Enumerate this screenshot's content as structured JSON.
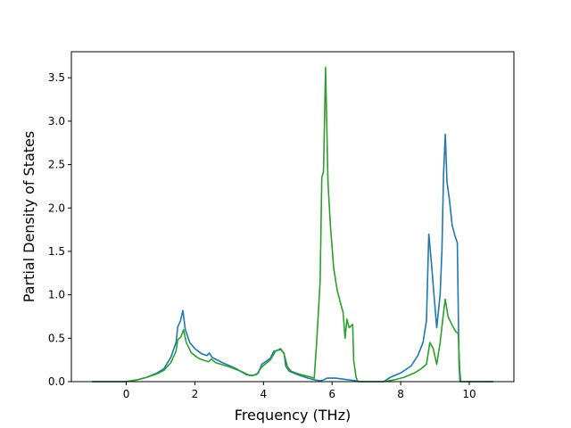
{
  "chart_data": {
    "type": "line",
    "title": "",
    "xlabel": "Frequency (THz)",
    "ylabel": "Partial Density of States",
    "xlim": [
      -1.6,
      11.3
    ],
    "ylim": [
      0,
      3.8
    ],
    "xticks": [
      0,
      2,
      4,
      6,
      8,
      10
    ],
    "xtick_labels": [
      "0",
      "2",
      "4",
      "6",
      "8",
      "10"
    ],
    "yticks": [
      0.0,
      0.5,
      1.0,
      1.5,
      2.0,
      2.5,
      3.0,
      3.5
    ],
    "ytick_labels": [
      "0.0",
      "0.5",
      "1.0",
      "1.5",
      "2.0",
      "2.5",
      "3.0",
      "3.5"
    ],
    "grid": false,
    "legend": "none",
    "series": [
      {
        "color": "#1f77b4",
        "points": [
          [
            -1.0,
            0.0
          ],
          [
            0.0,
            0.0
          ],
          [
            0.3,
            0.02
          ],
          [
            0.6,
            0.05
          ],
          [
            0.9,
            0.1
          ],
          [
            1.1,
            0.15
          ],
          [
            1.3,
            0.28
          ],
          [
            1.45,
            0.45
          ],
          [
            1.5,
            0.63
          ],
          [
            1.58,
            0.7
          ],
          [
            1.65,
            0.82
          ],
          [
            1.72,
            0.6
          ],
          [
            1.85,
            0.45
          ],
          [
            2.0,
            0.38
          ],
          [
            2.2,
            0.32
          ],
          [
            2.35,
            0.3
          ],
          [
            2.42,
            0.33
          ],
          [
            2.5,
            0.28
          ],
          [
            2.8,
            0.22
          ],
          [
            3.2,
            0.15
          ],
          [
            3.5,
            0.08
          ],
          [
            3.7,
            0.07
          ],
          [
            3.85,
            0.1
          ],
          [
            3.95,
            0.2
          ],
          [
            4.1,
            0.24
          ],
          [
            4.2,
            0.27
          ],
          [
            4.3,
            0.35
          ],
          [
            4.5,
            0.37
          ],
          [
            4.6,
            0.33
          ],
          [
            4.65,
            0.18
          ],
          [
            4.75,
            0.12
          ],
          [
            5.0,
            0.08
          ],
          [
            5.3,
            0.04
          ],
          [
            5.5,
            0.02
          ],
          [
            5.65,
            0.01
          ],
          [
            5.75,
            0.02
          ],
          [
            5.85,
            0.04
          ],
          [
            6.1,
            0.04
          ],
          [
            6.3,
            0.03
          ],
          [
            6.5,
            0.02
          ],
          [
            6.7,
            0.01
          ],
          [
            6.8,
            0.0
          ],
          [
            7.5,
            0.0
          ],
          [
            7.7,
            0.05
          ],
          [
            8.0,
            0.1
          ],
          [
            8.3,
            0.18
          ],
          [
            8.5,
            0.3
          ],
          [
            8.65,
            0.45
          ],
          [
            8.75,
            0.7
          ],
          [
            8.82,
            1.7
          ],
          [
            8.9,
            1.35
          ],
          [
            8.97,
            1.0
          ],
          [
            9.05,
            0.62
          ],
          [
            9.15,
            1.0
          ],
          [
            9.2,
            1.5
          ],
          [
            9.25,
            2.4
          ],
          [
            9.3,
            2.85
          ],
          [
            9.35,
            2.3
          ],
          [
            9.42,
            2.1
          ],
          [
            9.5,
            1.8
          ],
          [
            9.58,
            1.68
          ],
          [
            9.65,
            1.6
          ],
          [
            9.7,
            0.2
          ],
          [
            9.73,
            0.0
          ],
          [
            10.7,
            0.0
          ]
        ]
      },
      {
        "color": "#2ca02c",
        "points": [
          [
            -1.0,
            0.0
          ],
          [
            0.0,
            0.0
          ],
          [
            0.3,
            0.02
          ],
          [
            0.6,
            0.05
          ],
          [
            0.9,
            0.09
          ],
          [
            1.1,
            0.13
          ],
          [
            1.3,
            0.22
          ],
          [
            1.45,
            0.35
          ],
          [
            1.5,
            0.48
          ],
          [
            1.6,
            0.52
          ],
          [
            1.67,
            0.6
          ],
          [
            1.75,
            0.45
          ],
          [
            1.9,
            0.33
          ],
          [
            2.1,
            0.27
          ],
          [
            2.3,
            0.24
          ],
          [
            2.4,
            0.23
          ],
          [
            2.48,
            0.26
          ],
          [
            2.6,
            0.22
          ],
          [
            3.0,
            0.17
          ],
          [
            3.4,
            0.11
          ],
          [
            3.6,
            0.07
          ],
          [
            3.8,
            0.08
          ],
          [
            3.95,
            0.17
          ],
          [
            4.2,
            0.25
          ],
          [
            4.35,
            0.35
          ],
          [
            4.5,
            0.38
          ],
          [
            4.6,
            0.32
          ],
          [
            4.7,
            0.17
          ],
          [
            4.8,
            0.12
          ],
          [
            5.1,
            0.08
          ],
          [
            5.4,
            0.05
          ],
          [
            5.48,
            0.04
          ],
          [
            5.55,
            0.45
          ],
          [
            5.65,
            1.15
          ],
          [
            5.7,
            2.35
          ],
          [
            5.75,
            2.42
          ],
          [
            5.81,
            3.62
          ],
          [
            5.88,
            2.3
          ],
          [
            5.95,
            1.8
          ],
          [
            6.05,
            1.3
          ],
          [
            6.15,
            1.05
          ],
          [
            6.25,
            0.9
          ],
          [
            6.32,
            0.8
          ],
          [
            6.38,
            0.5
          ],
          [
            6.43,
            0.72
          ],
          [
            6.5,
            0.62
          ],
          [
            6.6,
            0.66
          ],
          [
            6.63,
            0.25
          ],
          [
            6.7,
            0.05
          ],
          [
            6.75,
            0.0
          ],
          [
            7.5,
            0.0
          ],
          [
            7.8,
            0.02
          ],
          [
            8.1,
            0.05
          ],
          [
            8.4,
            0.1
          ],
          [
            8.6,
            0.15
          ],
          [
            8.75,
            0.2
          ],
          [
            8.85,
            0.45
          ],
          [
            8.95,
            0.38
          ],
          [
            9.05,
            0.2
          ],
          [
            9.15,
            0.45
          ],
          [
            9.25,
            0.8
          ],
          [
            9.3,
            0.95
          ],
          [
            9.38,
            0.75
          ],
          [
            9.5,
            0.65
          ],
          [
            9.6,
            0.58
          ],
          [
            9.68,
            0.55
          ],
          [
            9.72,
            0.15
          ],
          [
            9.75,
            0.0
          ],
          [
            10.7,
            0.0
          ]
        ]
      }
    ]
  }
}
